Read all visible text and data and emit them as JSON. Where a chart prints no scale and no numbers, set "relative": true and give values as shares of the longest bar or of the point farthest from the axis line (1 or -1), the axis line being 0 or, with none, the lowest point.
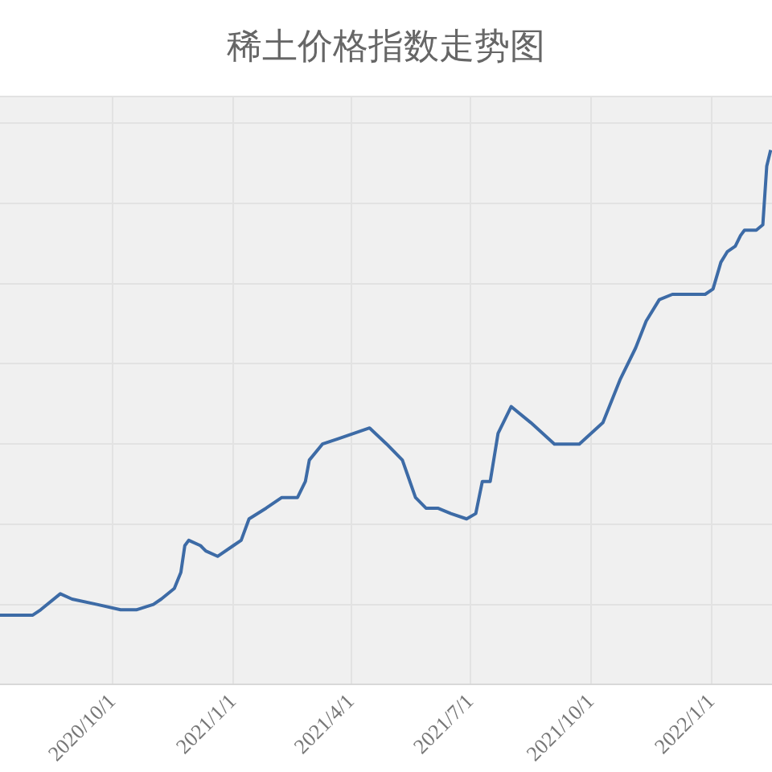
{
  "chart_data": {
    "type": "line",
    "title": "稀土价格指数走势图",
    "relative": true,
    "grid": true,
    "marker": "none",
    "line_style": "solid",
    "legend": false,
    "xlim": [
      "2020-07-07",
      "2022-02-16"
    ],
    "xticks": [
      {
        "value": "2020-10-01",
        "label": "2020/10/1"
      },
      {
        "value": "2021-01-01",
        "label": "2021/1/1"
      },
      {
        "value": "2021-04-01",
        "label": "2021/4/1"
      },
      {
        "value": "2021-07-01",
        "label": "2021/7/1"
      },
      {
        "value": "2021-10-01",
        "label": "2021/10/1"
      },
      {
        "value": "2022-01-01",
        "label": "2022/1/1"
      }
    ],
    "series": [
      {
        "color": "#3d6ba6",
        "x": [
          "2020-07-07",
          "2020-08-01",
          "2020-08-07",
          "2020-08-22",
          "2020-08-31",
          "2020-09-19",
          "2020-10-07",
          "2020-10-19",
          "2020-11-01",
          "2020-11-07",
          "2020-11-17",
          "2020-11-22",
          "2020-11-25",
          "2020-11-28",
          "2020-12-07",
          "2020-12-11",
          "2020-12-20",
          "2021-01-01",
          "2021-01-07",
          "2021-01-13",
          "2021-01-26",
          "2021-02-07",
          "2021-02-19",
          "2021-02-25",
          "2021-02-28",
          "2021-03-10",
          "2021-03-22",
          "2021-04-03",
          "2021-04-15",
          "2021-04-28",
          "2021-05-10",
          "2021-05-20",
          "2021-05-28",
          "2021-06-06",
          "2021-06-16",
          "2021-06-28",
          "2021-07-05",
          "2021-07-10",
          "2021-07-16",
          "2021-07-22",
          "2021-08-01",
          "2021-08-16",
          "2021-09-03",
          "2021-09-22",
          "2021-10-10",
          "2021-10-23",
          "2021-11-04",
          "2021-11-12",
          "2021-11-22",
          "2021-12-02",
          "2021-12-14",
          "2021-12-27",
          "2022-01-02",
          "2022-01-08",
          "2022-01-13",
          "2022-01-19",
          "2022-01-23",
          "2022-01-26",
          "2022-02-04",
          "2022-02-09",
          "2022-02-12",
          "2022-02-15"
        ],
        "values": [
          0.13,
          0.13,
          0.14,
          0.17,
          0.16,
          0.15,
          0.14,
          0.14,
          0.15,
          0.16,
          0.18,
          0.21,
          0.26,
          0.27,
          0.26,
          0.25,
          0.24,
          0.26,
          0.27,
          0.31,
          0.33,
          0.35,
          0.35,
          0.38,
          0.42,
          0.45,
          0.46,
          0.47,
          0.48,
          0.45,
          0.42,
          0.35,
          0.33,
          0.33,
          0.32,
          0.31,
          0.32,
          0.38,
          0.38,
          0.47,
          0.52,
          0.49,
          0.45,
          0.45,
          0.49,
          0.57,
          0.63,
          0.68,
          0.72,
          0.73,
          0.73,
          0.73,
          0.74,
          0.79,
          0.81,
          0.82,
          0.84,
          0.85,
          0.85,
          0.86,
          0.97,
          1
        ]
      }
    ]
  }
}
